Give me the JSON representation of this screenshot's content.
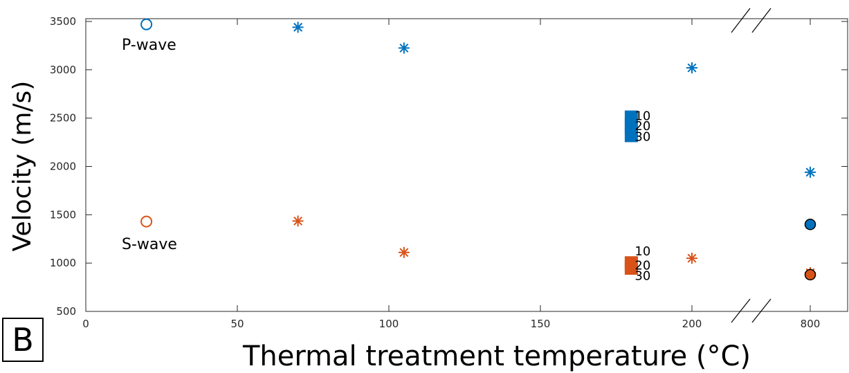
{
  "panel_label": "B",
  "colors": {
    "p_wave": "#0072BD",
    "s_wave": "#D95319",
    "axis": "#262626"
  },
  "chart_data": {
    "type": "scatter",
    "xlabel": "Thermal treatment temperature (°C)",
    "ylabel": "Velocity (m/s)",
    "ylim": [
      500,
      3600
    ],
    "x_ticks": [
      "0",
      "50",
      "100",
      "150",
      "200",
      "800"
    ],
    "y_ticks": [
      "500",
      "1000",
      "1500",
      "2000",
      "2500",
      "3000",
      "3500"
    ],
    "axis_break": "between 200 and 800",
    "grid": false,
    "annotations": {
      "p": "P-wave",
      "s": "S-wave"
    },
    "series": [
      {
        "wave": "P",
        "marker": "open-circle",
        "points": [
          {
            "x": 20,
            "y": 3470
          }
        ]
      },
      {
        "wave": "P",
        "marker": "asterisk",
        "points": [
          {
            "x": 70,
            "y": 3440
          },
          {
            "x": 105,
            "y": 3225
          },
          {
            "x": 200,
            "y": 3020
          },
          {
            "x": 800,
            "y": 1940
          }
        ]
      },
      {
        "wave": "P",
        "marker": "square",
        "points": [
          {
            "x": 180,
            "y": 2500,
            "label": "10"
          },
          {
            "x": 180,
            "y": 2420,
            "label": "20"
          },
          {
            "x": 180,
            "y": 2330,
            "label": "30"
          }
        ]
      },
      {
        "wave": "P",
        "marker": "filled-circle",
        "points": [
          {
            "x": 800,
            "y": 1400
          }
        ]
      },
      {
        "wave": "S",
        "marker": "open-circle",
        "points": [
          {
            "x": 20,
            "y": 1430
          }
        ]
      },
      {
        "wave": "S",
        "marker": "asterisk",
        "points": [
          {
            "x": 70,
            "y": 1435
          },
          {
            "x": 105,
            "y": 1110
          },
          {
            "x": 200,
            "y": 1050
          },
          {
            "x": 800,
            "y": 900
          }
        ]
      },
      {
        "wave": "S",
        "marker": "square",
        "points": [
          {
            "x": 180,
            "y": 1010,
            "label": "10"
          },
          {
            "x": 180,
            "y": 975,
            "label": "20"
          },
          {
            "x": 180,
            "y": 940,
            "label": "30"
          }
        ]
      },
      {
        "wave": "S",
        "marker": "filled-circle",
        "points": [
          {
            "x": 800,
            "y": 880
          }
        ]
      }
    ]
  }
}
